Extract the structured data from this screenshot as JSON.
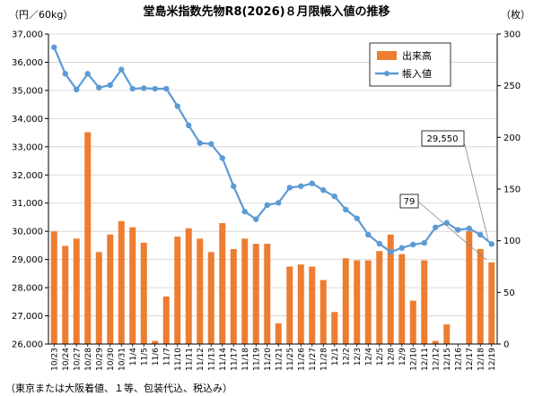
{
  "chart_data": {
    "type": "bar",
    "title": "堂島米指数先物R8(2026)８月限帳入値の推移",
    "ylabel_left": "（円／60kg）",
    "ylabel_right": "（枚）",
    "note": "（東京または大阪着値、１等、包装代込、税込み）",
    "ylim_left": [
      26000,
      37000
    ],
    "ylim_right": [
      0,
      300
    ],
    "left_ticks": [
      "26,000",
      "27,000",
      "28,000",
      "29,000",
      "30,000",
      "31,000",
      "32,000",
      "33,000",
      "34,000",
      "35,000",
      "36,000",
      "37,000"
    ],
    "right_ticks": [
      "0",
      "50",
      "100",
      "150",
      "200",
      "250",
      "300"
    ],
    "categories": [
      "10/23",
      "10/24",
      "10/27",
      "10/28",
      "10/29",
      "10/30",
      "10/31",
      "11/4",
      "11/5",
      "11/6",
      "11/7",
      "11/10",
      "11/11",
      "11/12",
      "11/13",
      "11/14",
      "11/17",
      "11/18",
      "11/19",
      "11/20",
      "11/21",
      "11/25",
      "11/26",
      "11/27",
      "11/28",
      "12/1",
      "12/2",
      "12/3",
      "12/4",
      "12/5",
      "12/8",
      "12/9",
      "12/10",
      "12/11",
      "12/12",
      "12/15",
      "12/16",
      "12/17",
      "12/18",
      "12/19"
    ],
    "series": [
      {
        "name": "出来高",
        "type": "bar",
        "axis": "right",
        "color": "#ED7D31",
        "values": [
          109,
          95,
          102,
          205,
          89,
          106,
          119,
          113,
          98,
          3,
          46,
          104,
          112,
          102,
          89,
          117,
          92,
          102,
          97,
          97,
          20,
          75,
          77,
          75,
          62,
          31,
          83,
          81,
          81,
          90,
          106,
          87,
          42,
          81,
          3,
          19,
          0,
          109,
          92,
          79
        ]
      },
      {
        "name": "帳入値",
        "type": "line",
        "axis": "left",
        "color": "#5B9BD5",
        "values": [
          36530,
          35590,
          35030,
          35590,
          35100,
          35190,
          35740,
          35060,
          35080,
          35060,
          35060,
          34440,
          33760,
          33130,
          33100,
          32600,
          31600,
          30700,
          30430,
          30930,
          31010,
          31550,
          31600,
          31700,
          31460,
          31240,
          30770,
          30460,
          29880,
          29560,
          29270,
          29410,
          29530,
          29590,
          30140,
          30300,
          30050,
          30100,
          29880,
          29550
        ]
      }
    ],
    "legend": [
      "出来高",
      "帳入値"
    ],
    "legend_position": "top-right",
    "annotations": [
      "29,550",
      "79"
    ]
  }
}
